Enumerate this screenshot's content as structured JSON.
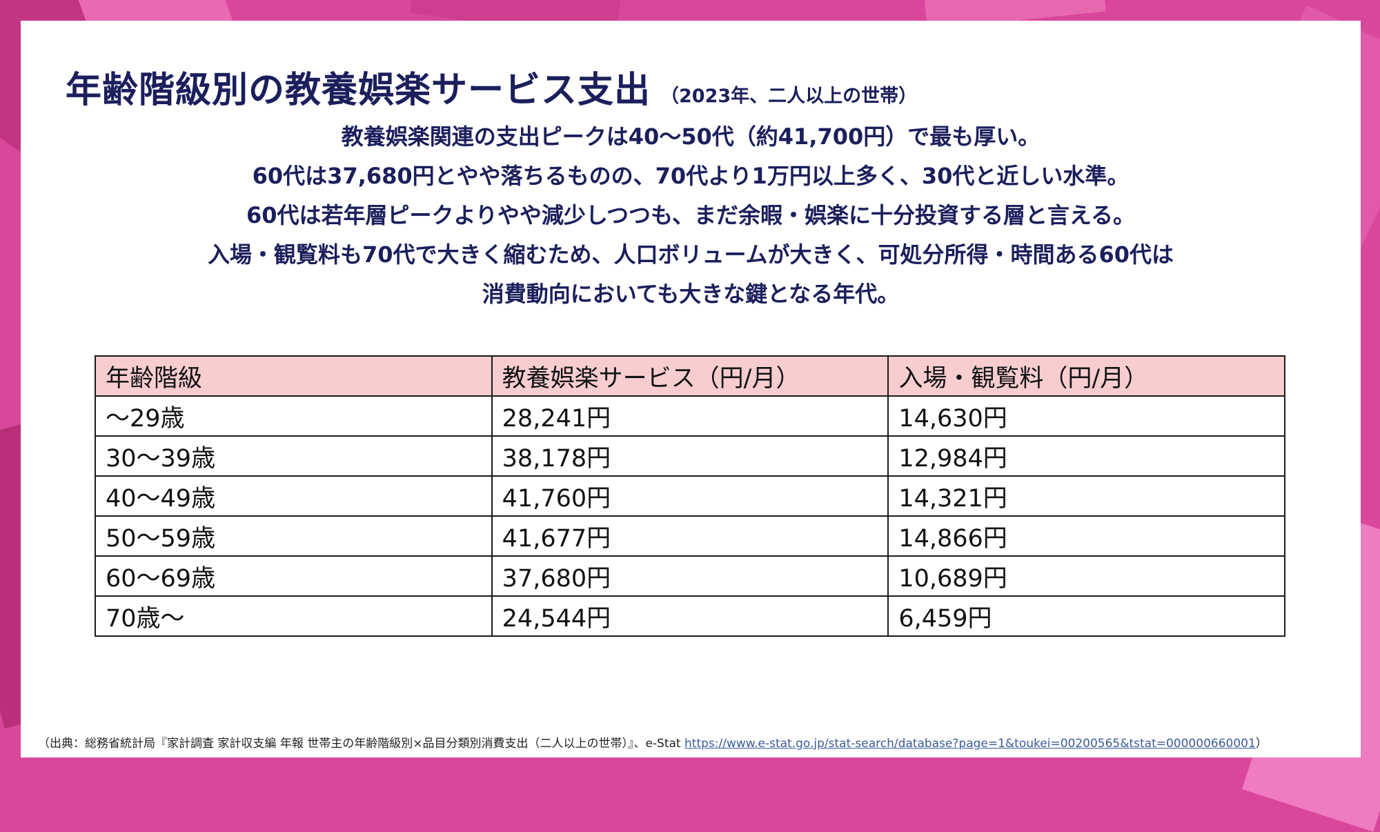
{
  "title": "年齢階級別の教養娯楽サービス支出",
  "subtitle": "（2023年、二人以上の世帯）",
  "summary_lines": [
    "教養娯楽関連の支出ピークは40〜50代（約41,700円）で最も厚い。",
    "60代は37,680円とやや落ちるものの、70代より1万円以上多く、30代と近しい水準。",
    "60代は若年層ピークよりやや減少しつつも、まだ余暇・娯楽に十分投資する層と言える。",
    "入場・観覧料も70代で大きく縮むため、人口ボリュームが大きく、可処分所得・時間ある60代は",
    "消費動向においても大きな鍵となる年代。"
  ],
  "table": {
    "headers": [
      "年齢階級",
      "教養娯楽サービス（円/月）",
      "入場・観覧料（円/月）"
    ],
    "rows": [
      [
        "〜29歳",
        "28,241円",
        "14,630円"
      ],
      [
        "30〜39歳",
        "38,178円",
        "12,984円"
      ],
      [
        "40〜49歳",
        "41,760円",
        "14,321円"
      ],
      [
        "50〜59歳",
        "41,677円",
        "14,866円"
      ],
      [
        "60〜69歳",
        "37,680円",
        "10,689円"
      ],
      [
        "70歳〜",
        "24,544円",
        "6,459円"
      ]
    ]
  },
  "source": {
    "prefix": "（出典：総務省統計局『家計調査 家計収支編 年報 世帯主の年齢階級別×品目分類別消費支出（二人以上の世帯）』、e-Stat ",
    "link": "https://www.e-stat.go.jp/stat-search/database?page=1&toukei=00200565&tstat=000000660001",
    "suffix": "）"
  },
  "colors": {
    "background": "#d9479b",
    "title": "#1b1f5c",
    "header_fill": "#f8cdd0",
    "link": "#3a5a9a"
  }
}
